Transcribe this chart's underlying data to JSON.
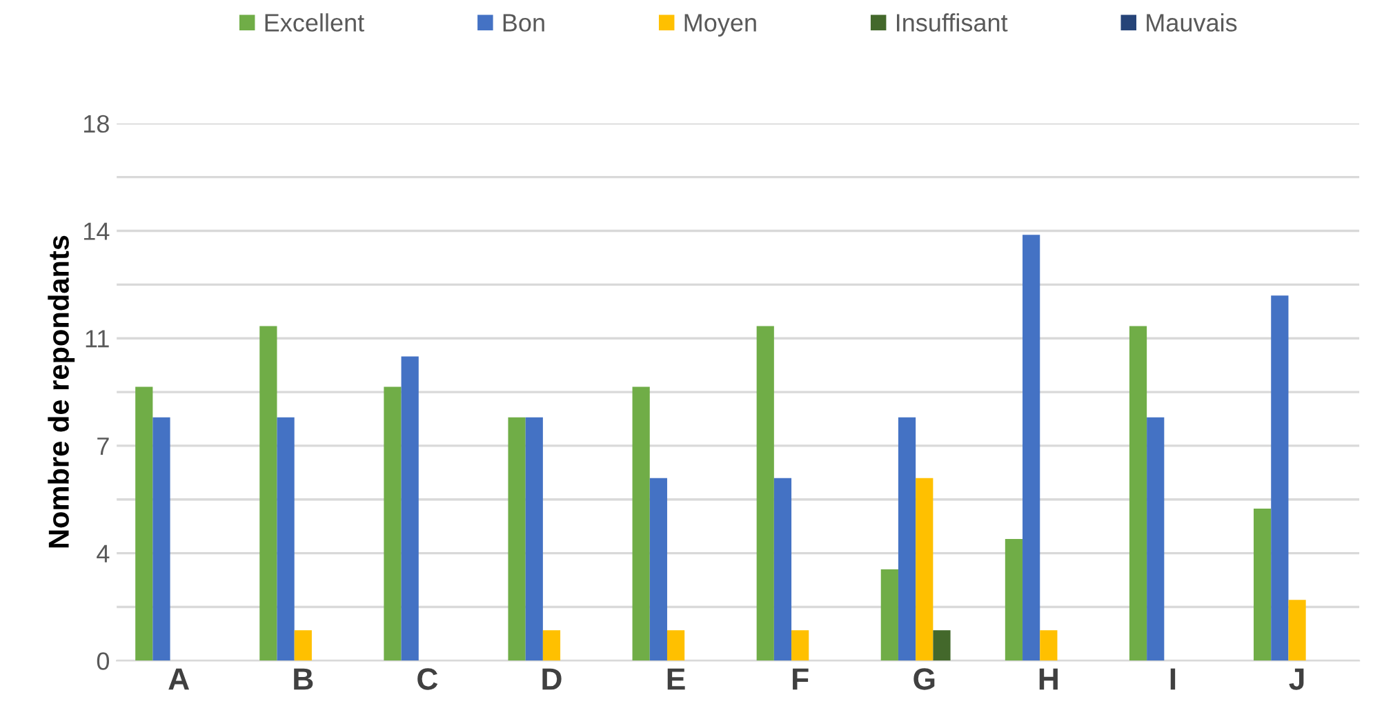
{
  "chart_data": {
    "type": "bar",
    "ylabel": "Nombre de repondants",
    "categories": [
      "A",
      "B",
      "C",
      "D",
      "E",
      "F",
      "G",
      "H",
      "I",
      "J"
    ],
    "series": [
      {
        "name": "Excellent",
        "color": "#70ad47",
        "values": [
          9,
          11,
          9,
          8,
          9,
          11,
          3,
          4,
          11,
          5
        ]
      },
      {
        "name": "Bon",
        "color": "#4472c4",
        "values": [
          8,
          8,
          10,
          8,
          6,
          6,
          8,
          14,
          8,
          12
        ]
      },
      {
        "name": "Moyen",
        "color": "#ffc000",
        "values": [
          0,
          1,
          0,
          1,
          1,
          1,
          6,
          1,
          0,
          2
        ]
      },
      {
        "name": "Insuffisant",
        "color": "#43682b",
        "values": [
          0,
          0,
          0,
          0,
          0,
          0,
          1,
          0,
          0,
          0
        ]
      },
      {
        "name": "Mauvais",
        "color": "#264478",
        "values": [
          0,
          0,
          0,
          0,
          0,
          0,
          0,
          0,
          0,
          0
        ]
      }
    ],
    "ylim": [
      0,
      17.66
    ],
    "yticks": [
      {
        "value": 0,
        "label": "0"
      },
      {
        "value": 1.766,
        "label": null
      },
      {
        "value": 3.532,
        "label": "4"
      },
      {
        "value": 5.298,
        "label": null
      },
      {
        "value": 7.064,
        "label": "7"
      },
      {
        "value": 8.83,
        "label": null
      },
      {
        "value": 10.596,
        "label": "11"
      },
      {
        "value": 12.362,
        "label": null
      },
      {
        "value": 14.128,
        "label": "14"
      },
      {
        "value": 15.894,
        "label": null
      },
      {
        "value": 17.66,
        "label": "18"
      }
    ],
    "grid": "y",
    "legend": "top"
  }
}
